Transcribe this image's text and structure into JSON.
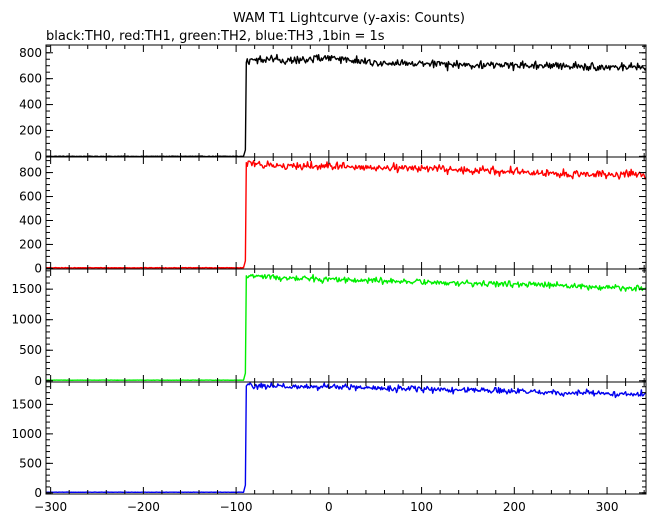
{
  "chart_data": {
    "type": "line",
    "title": "WAM T1 Lightcurve (y-axis: Counts)",
    "subtitle": "black:TH0, red:TH1, green:TH2, blue:TH3 ,1bin = 1s",
    "xlim": [
      -305,
      342
    ],
    "x_ticks": [
      -300,
      -200,
      -100,
      0,
      100,
      200,
      300
    ],
    "x_tick_labels": [
      "−300",
      "−200",
      "−100",
      "0",
      "100",
      "200",
      "300"
    ],
    "grid": false,
    "bin_seconds": 1,
    "series": [
      {
        "name": "TH0",
        "color": "#000000",
        "ylim": [
          -5,
          860
        ],
        "y_ticks": [
          0,
          200,
          400,
          600,
          800
        ],
        "baseline": 0,
        "trigger_x": -91,
        "rise_x": -89,
        "level_points": [
          [
            -89,
            740
          ],
          [
            -70,
            755
          ],
          [
            -40,
            735
          ],
          [
            0,
            765
          ],
          [
            50,
            725
          ],
          [
            100,
            720
          ],
          [
            150,
            705
          ],
          [
            200,
            705
          ],
          [
            250,
            700
          ],
          [
            300,
            690
          ],
          [
            340,
            685
          ]
        ],
        "noise": 28
      },
      {
        "name": "TH1",
        "color": "#ff0000",
        "ylim": [
          -5,
          930
        ],
        "y_ticks": [
          0,
          200,
          400,
          600,
          800
        ],
        "baseline": 5,
        "trigger_x": -91,
        "rise_x": -89,
        "level_points": [
          [
            -89,
            880
          ],
          [
            -70,
            860
          ],
          [
            -40,
            850
          ],
          [
            0,
            855
          ],
          [
            50,
            840
          ],
          [
            100,
            835
          ],
          [
            150,
            820
          ],
          [
            200,
            805
          ],
          [
            250,
            790
          ],
          [
            300,
            785
          ],
          [
            340,
            780
          ]
        ],
        "noise": 30
      },
      {
        "name": "TH2",
        "color": "#00ee00",
        "ylim": [
          -20,
          1830
        ],
        "y_ticks": [
          0,
          500,
          1000,
          1500
        ],
        "y_tick_labels": [
          "0",
          "500",
          "1000",
          "1500"
        ],
        "baseline": 10,
        "trigger_x": -91,
        "rise_x": -89,
        "level_points": [
          [
            -89,
            1720
          ],
          [
            -70,
            1690
          ],
          [
            -40,
            1680
          ],
          [
            0,
            1660
          ],
          [
            50,
            1640
          ],
          [
            100,
            1620
          ],
          [
            150,
            1600
          ],
          [
            200,
            1580
          ],
          [
            250,
            1560
          ],
          [
            300,
            1530
          ],
          [
            340,
            1510
          ]
        ],
        "noise": 45
      },
      {
        "name": "TH3",
        "color": "#0000ee",
        "ylim": [
          -20,
          1880
        ],
        "y_ticks": [
          0,
          500,
          1000,
          1500
        ],
        "y_tick_labels": [
          "0",
          "500",
          "1000",
          "1500"
        ],
        "baseline": 10,
        "trigger_x": -91,
        "rise_x": -89,
        "level_points": [
          [
            -89,
            1820
          ],
          [
            -70,
            1810
          ],
          [
            -40,
            1800
          ],
          [
            0,
            1800
          ],
          [
            50,
            1780
          ],
          [
            100,
            1760
          ],
          [
            150,
            1740
          ],
          [
            200,
            1720
          ],
          [
            250,
            1700
          ],
          [
            300,
            1680
          ],
          [
            340,
            1670
          ]
        ],
        "noise": 45
      }
    ]
  }
}
